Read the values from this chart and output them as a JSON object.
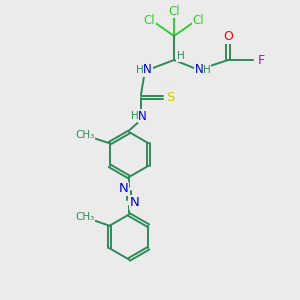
{
  "bg_color": "#ebebeb",
  "bond_color": "#2e8b57",
  "N_color": "#0000cd",
  "O_color": "#ff0000",
  "S_color": "#cccc00",
  "F_color": "#cc00cc",
  "Cl_color": "#32cd32",
  "H_color": "#2e8b57",
  "line_width": 1.4,
  "fig_size": [
    3.0,
    3.0
  ],
  "dpi": 100,
  "xlim": [
    0,
    10
  ],
  "ylim": [
    0,
    10
  ]
}
